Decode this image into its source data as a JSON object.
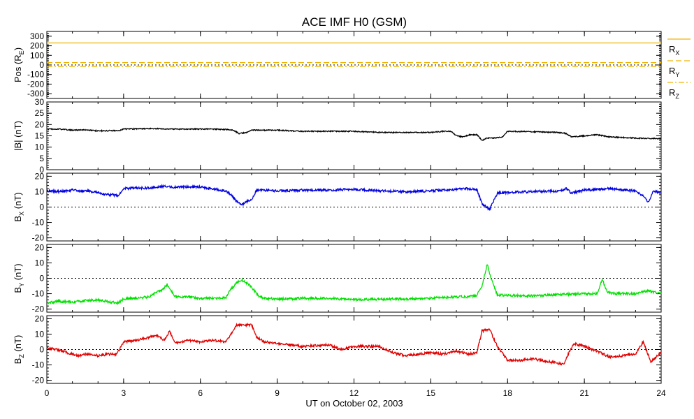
{
  "chart_data": {
    "type": "line",
    "title": "ACE IMF H0 (GSM)",
    "xlabel": "UT on October 02, 2003",
    "xlim": [
      0,
      24
    ],
    "xticks": [
      "0",
      "3",
      "6",
      "9",
      "12",
      "15",
      "18",
      "21",
      "24"
    ],
    "panels": [
      {
        "id": "pos",
        "ylabel": "Pos (R",
        "ylabel_sub": "E",
        "ylabel_end": ")",
        "ylim": [
          -350,
          350
        ],
        "yticks": [
          "300",
          "200",
          "100",
          "0",
          "-100",
          "-200",
          "-300"
        ],
        "zero_line": true,
        "legend": [
          {
            "label": "R",
            "sub": "X",
            "style": "solid"
          },
          {
            "label": "R",
            "sub": "Y",
            "style": "dash"
          },
          {
            "label": "R",
            "sub": "Z",
            "style": "dashdot"
          }
        ],
        "series": [
          {
            "label": "R",
            "sub": "X",
            "color": "#f0b400",
            "style": "solid",
            "x": [
              0,
              24
            ],
            "y": [
              230,
              230
            ]
          },
          {
            "label": "R",
            "sub": "Y",
            "color": "#f0b400",
            "style": "dash",
            "x": [
              0,
              24
            ],
            "y": [
              25,
              25
            ]
          },
          {
            "label": "R",
            "sub": "Z",
            "color": "#f0b400",
            "style": "dashdot",
            "x": [
              0,
              24
            ],
            "y": [
              -15,
              -15
            ]
          }
        ]
      },
      {
        "id": "bt",
        "ylabel": "|B| (nT)",
        "ylim": [
          0,
          30
        ],
        "yticks": [
          "30",
          "25",
          "20",
          "15",
          "10",
          "5",
          "0"
        ],
        "zero_line": false,
        "series": [
          {
            "color": "#000000",
            "x": [
              0,
              0.5,
              1,
              1.5,
              2,
              2.5,
              2.8,
              3,
              4,
              5,
              6,
              6.5,
              7,
              7.3,
              7.5,
              7.8,
              8,
              9,
              10,
              11,
              12,
              13,
              14,
              15,
              15.5,
              15.8,
              16,
              16.3,
              16.5,
              16.8,
              17,
              17.2,
              17.5,
              17.8,
              18,
              19,
              20,
              20.3,
              20.5,
              21,
              21.5,
              22,
              23,
              24
            ],
            "y": [
              18,
              18,
              17.5,
              17.6,
              17.2,
              17.3,
              17.2,
              18,
              18.2,
              18,
              18,
              18,
              17.8,
              17.5,
              16,
              16.5,
              17.5,
              17.5,
              17,
              17,
              17,
              16.5,
              16.5,
              16.5,
              17,
              17,
              15,
              14.5,
              15.5,
              15.5,
              13,
              14,
              14,
              14.5,
              17,
              16.8,
              16.5,
              16,
              14.5,
              15,
              15.5,
              14.5,
              14,
              13.7
            ]
          }
        ]
      },
      {
        "id": "bx",
        "ylabel": "B",
        "ylabel_sub": "X",
        "ylabel_end": " (nT)",
        "ylim": [
          -22,
          22
        ],
        "yticks": [
          "20",
          "10",
          "0",
          "-10",
          "-20"
        ],
        "zero_line": true,
        "series": [
          {
            "color": "#0000e0",
            "x": [
              0,
              0.5,
              1,
              1.3,
              1.6,
              2,
              2.3,
              2.6,
              2.8,
              3,
              4,
              4.5,
              5,
              6,
              7,
              7.2,
              7.4,
              7.6,
              7.8,
              8,
              8.2,
              9,
              10,
              11,
              12,
              13,
              14,
              15,
              16,
              16.5,
              16.8,
              17,
              17.3,
              17.6,
              18,
              19,
              20,
              20.3,
              20.5,
              21,
              22,
              23,
              23.3,
              23.5,
              23.7,
              24
            ],
            "y": [
              10.5,
              10,
              11,
              10.5,
              10.5,
              9.5,
              8,
              8,
              7,
              12,
              12.5,
              13.5,
              13,
              13,
              10.5,
              8,
              4,
              1.5,
              3.5,
              5,
              11,
              10.5,
              11,
              11,
              11.5,
              10.5,
              10,
              10.5,
              11.5,
              12,
              11.5,
              2,
              -1.5,
              9,
              9.5,
              10,
              10.5,
              12,
              9,
              11,
              12,
              10.5,
              7,
              3,
              10.5,
              9
            ]
          }
        ]
      },
      {
        "id": "by",
        "ylabel": "B",
        "ylabel_sub": "Y",
        "ylabel_end": " (nT)",
        "ylim": [
          -22,
          22
        ],
        "yticks": [
          "20",
          "10",
          "0",
          "-10",
          "-20"
        ],
        "zero_line": true,
        "series": [
          {
            "color": "#00e000",
            "x": [
              0,
              0.5,
              1,
              1.5,
              2,
              2.5,
              2.8,
              3,
              3.5,
              4,
              4.3,
              4.5,
              4.7,
              5,
              5.5,
              6,
              6.5,
              7,
              7.2,
              7.4,
              7.6,
              7.8,
              8,
              8.3,
              8.6,
              9,
              10,
              11,
              12,
              13,
              14,
              15,
              16,
              16.5,
              16.8,
              17,
              17.2,
              17.4,
              17.6,
              18,
              19,
              20,
              21,
              21.5,
              21.7,
              21.9,
              22.2,
              23,
              23.5,
              24
            ],
            "y": [
              -16,
              -15,
              -15.5,
              -14.5,
              -14,
              -15.5,
              -16,
              -13.5,
              -13,
              -12,
              -9,
              -8,
              -4,
              -12,
              -12,
              -13,
              -13,
              -12.5,
              -7,
              -3,
              -1,
              -3,
              -6,
              -12,
              -13,
              -13.5,
              -13,
              -13,
              -14,
              -13.5,
              -13.5,
              -13,
              -12,
              -12,
              -11,
              -5,
              9,
              -2,
              -11,
              -11,
              -11.5,
              -10.5,
              -10,
              -10,
              -1,
              -9,
              -10,
              -10,
              -8,
              -10
            ]
          }
        ]
      },
      {
        "id": "bz",
        "ylabel": "B",
        "ylabel_sub": "Z",
        "ylabel_end": " (nT)",
        "ylim": [
          -22,
          22
        ],
        "yticks": [
          "20",
          "10",
          "0",
          "-10",
          "-20"
        ],
        "zero_line": true,
        "series": [
          {
            "color": "#e00000",
            "x": [
              0,
              0.4,
              0.8,
              1.2,
              1.6,
              2,
              2.4,
              2.7,
              2.8,
              3,
              3.5,
              4,
              4.3,
              4.6,
              4.8,
              5,
              5.5,
              6,
              6.5,
              7,
              7.2,
              7.4,
              7.6,
              8,
              8.2,
              8.5,
              9,
              10,
              11,
              11.5,
              12,
              13,
              13.5,
              14,
              15,
              15.5,
              16,
              16.5,
              16.8,
              17,
              17.3,
              17.6,
              18,
              18.5,
              19,
              20,
              20.2,
              20.4,
              20.6,
              21,
              21.5,
              22,
              22.5,
              23,
              23.3,
              23.6,
              24
            ],
            "y": [
              1,
              0,
              -2,
              -4,
              -3,
              -4,
              -3,
              -3,
              -1,
              5,
              6,
              8,
              9,
              6,
              12,
              4,
              6,
              5,
              6,
              5,
              10,
              16,
              16,
              16,
              8,
              5,
              4,
              2,
              3,
              0,
              2,
              2,
              -2,
              -4,
              -2,
              -3,
              -1,
              -3,
              -2,
              12,
              13,
              2,
              -7,
              -7,
              -6,
              -9,
              -10,
              -2,
              4,
              2,
              -1,
              -5,
              -4,
              -3,
              5,
              -8,
              -2
            ]
          }
        ]
      }
    ]
  }
}
